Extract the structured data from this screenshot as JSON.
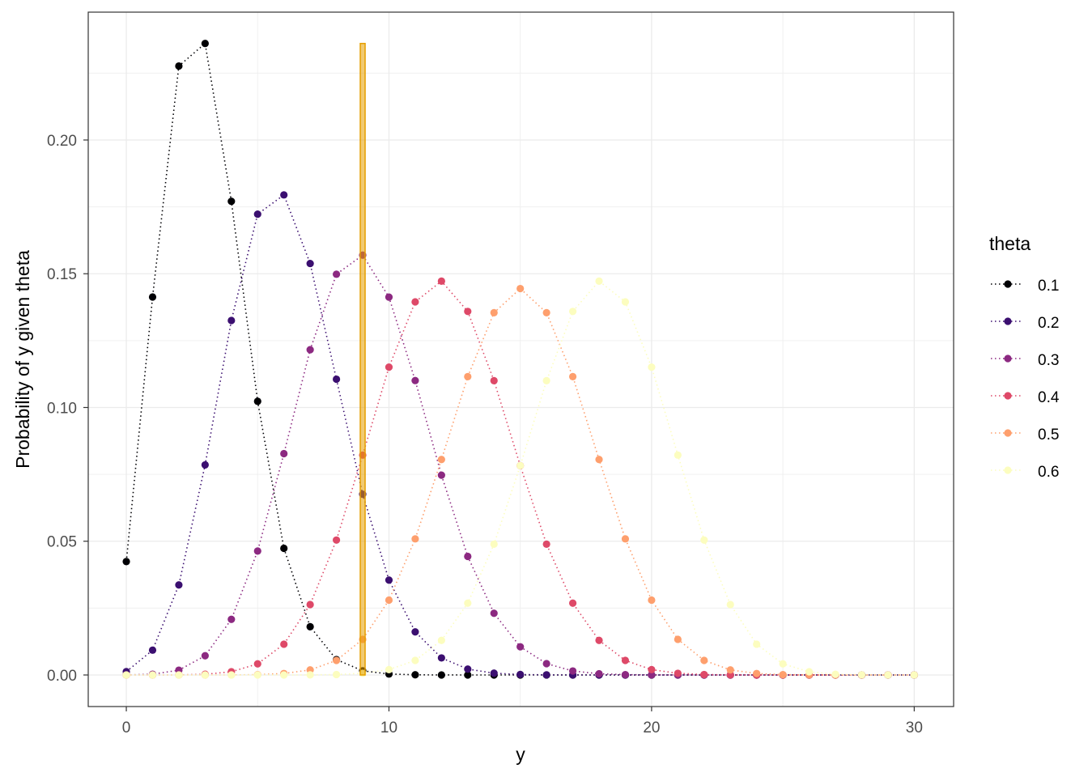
{
  "chart_data": {
    "type": "line",
    "xlabel": "y",
    "ylabel": "Probability of y given theta",
    "xlim": [
      -1.45,
      31.5
    ],
    "ylim": [
      -0.0118,
      0.2478
    ],
    "x_ticks": [
      0,
      10,
      20,
      30
    ],
    "x_tick_labels": [
      "0",
      "10",
      "20",
      "30"
    ],
    "y_ticks": [
      0,
      0.05,
      0.1,
      0.15,
      0.2
    ],
    "y_tick_labels": [
      "0.00",
      "0.05",
      "0.10",
      "0.15",
      "0.20"
    ],
    "grid": true,
    "legend": {
      "title": "theta",
      "position": "right"
    },
    "x": [
      0,
      1,
      2,
      3,
      4,
      5,
      6,
      7,
      8,
      9,
      10,
      11,
      12,
      13,
      14,
      15,
      16,
      17,
      18,
      19,
      20,
      21,
      22,
      23,
      24,
      25,
      26,
      27,
      28,
      29,
      30
    ],
    "series": [
      {
        "name": "0.1",
        "color": "#000004",
        "values": [
          0.04239,
          0.1413,
          0.22766,
          0.23609,
          0.17707,
          0.10231,
          0.04736,
          0.01804,
          0.00576,
          0.00157,
          0.00036,
          7e-05,
          1e-05,
          0,
          0,
          0,
          0,
          0,
          0,
          0,
          0,
          0,
          0,
          0,
          0,
          0,
          0,
          0,
          0,
          0,
          0
        ]
      },
      {
        "name": "0.2",
        "color": "#3B0F70",
        "values": [
          0.00124,
          0.00928,
          0.03366,
          0.07854,
          0.13253,
          0.17229,
          0.17947,
          0.15383,
          0.11057,
          0.06757,
          0.03547,
          0.01612,
          0.00638,
          0.00221,
          0.00067,
          0.00018,
          4e-05,
          1e-05,
          0,
          0,
          0,
          0,
          0,
          0,
          0,
          0,
          0,
          0,
          0,
          0,
          0
        ]
      },
      {
        "name": "0.3",
        "color": "#8C2981",
        "values": [
          2e-05,
          0.00029,
          0.0018,
          0.00719,
          0.02079,
          0.04634,
          0.08275,
          0.1216,
          0.14982,
          0.15696,
          0.14126,
          0.11007,
          0.07469,
          0.04432,
          0.02307,
          0.01054,
          0.00424,
          0.0015,
          0.00046,
          0.00013,
          3e-05,
          1e-05,
          0,
          0,
          0,
          0,
          0,
          0,
          0,
          0,
          0
        ]
      },
      {
        "name": "0.4",
        "color": "#DE4968",
        "values": [
          0,
          0.0,
          4e-05,
          0.00027,
          0.0012,
          0.00415,
          0.01151,
          0.02632,
          0.05044,
          0.0822,
          0.11508,
          0.13949,
          0.14724,
          0.13591,
          0.11002,
          0.07824,
          0.0489,
          0.02685,
          0.01293,
          0.00544,
          0.002,
          0.00063,
          0.00017,
          4e-05,
          1e-05,
          0,
          0,
          0,
          0,
          0,
          0
        ]
      },
      {
        "name": "0.5",
        "color": "#FE9F6D",
        "values": [
          0,
          0,
          0,
          0.0,
          3e-05,
          0.00013,
          0.00055,
          0.0019,
          0.00545,
          0.01333,
          0.02798,
          0.05088,
          0.08055,
          0.11154,
          0.13544,
          0.14446,
          0.13544,
          0.11154,
          0.08055,
          0.05088,
          0.02798,
          0.01333,
          0.00545,
          0.0019,
          0.00055,
          0.00013,
          3e-05,
          0.0,
          0,
          0,
          0
        ]
      },
      {
        "name": "0.6",
        "color": "#FCFDBF",
        "values": [
          0,
          0,
          0,
          0,
          0,
          0,
          1e-05,
          4e-05,
          0.00017,
          0.00063,
          0.002,
          0.00544,
          0.01293,
          0.02685,
          0.0489,
          0.07824,
          0.11002,
          0.13591,
          0.14724,
          0.13949,
          0.11508,
          0.0822,
          0.05044,
          0.02632,
          0.01151,
          0.00415,
          0.0012,
          0.00027,
          4e-05,
          0.0,
          0
        ]
      }
    ],
    "highlight_bar": {
      "x": 9,
      "y_from": 0,
      "y_to": 0.23609,
      "color": "#E69F00"
    }
  }
}
